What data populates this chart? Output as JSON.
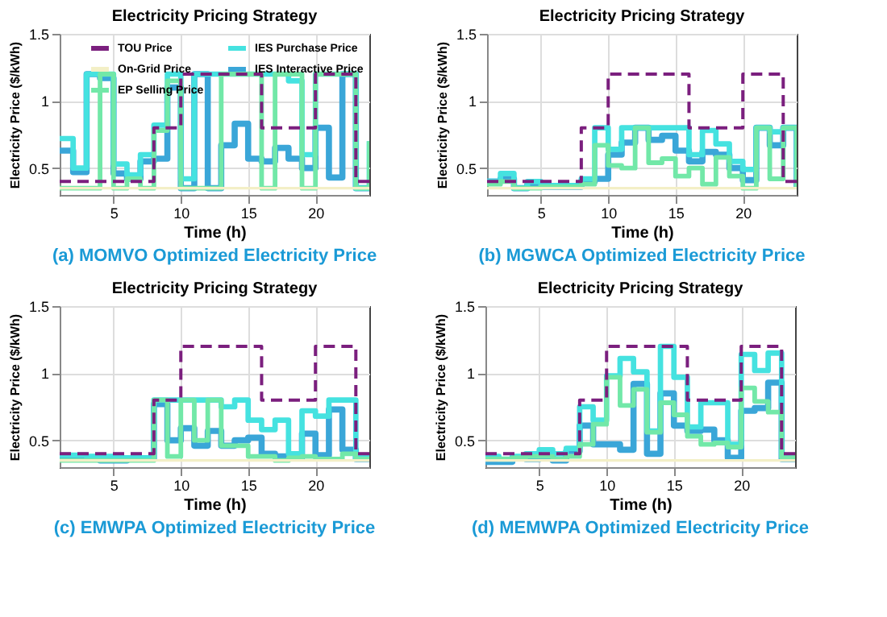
{
  "chart_data": [
    {
      "type": "step",
      "title": "Electricity Pricing Strategy",
      "xlabel": "Time (h)",
      "ylabel": "Electricity Price ($/kWh)",
      "annotations": [
        "(a) MOMVO Optimized Electricity Price"
      ],
      "x": [
        1,
        2,
        3,
        4,
        5,
        6,
        7,
        8,
        9,
        10,
        11,
        12,
        13,
        14,
        15,
        16,
        17,
        18,
        19,
        20,
        21,
        22,
        23,
        24
      ],
      "xlim": [
        1,
        24
      ],
      "xticks": [
        5,
        10,
        15,
        20
      ],
      "ylim": [
        0.3,
        1.5
      ],
      "yticks": [
        0.5,
        1,
        1.5
      ],
      "grid": true,
      "legend": "top",
      "series": [
        {
          "name": "TOU Price",
          "color": "#7b1f7e",
          "line_style": "dashed",
          "values": [
            0.4,
            0.4,
            0.4,
            0.4,
            0.4,
            0.4,
            0.4,
            0.8,
            0.8,
            1.2,
            1.2,
            1.2,
            1.2,
            1.2,
            1.2,
            0.8,
            0.8,
            0.8,
            0.8,
            1.2,
            1.2,
            1.2,
            0.4,
            0.4
          ]
        },
        {
          "name": "On-Grid Price",
          "color": "#f3efc6",
          "values": [
            0.35,
            0.35,
            0.35,
            0.35,
            0.35,
            0.35,
            0.35,
            0.35,
            0.35,
            0.35,
            0.35,
            0.35,
            0.35,
            0.35,
            0.35,
            0.35,
            0.35,
            0.35,
            0.35,
            0.35,
            0.35,
            0.35,
            0.35,
            0.35
          ]
        },
        {
          "name": "EP Selling Price",
          "color": "#72e8a8",
          "values": [
            0.35,
            0.35,
            0.35,
            1.2,
            0.35,
            0.42,
            0.35,
            0.78,
            1.15,
            0.35,
            0.35,
            0.35,
            1.2,
            1.2,
            1.2,
            0.35,
            1.2,
            1.2,
            0.35,
            1.2,
            1.2,
            1.2,
            0.35,
            0.7
          ]
        },
        {
          "name": "IES Purchase Price",
          "color": "#45e2e0",
          "values": [
            0.72,
            0.5,
            1.2,
            1.2,
            0.53,
            0.45,
            0.6,
            0.82,
            1.2,
            0.42,
            1.2,
            1.2,
            1.2,
            1.2,
            1.2,
            1.2,
            1.2,
            1.15,
            0.6,
            1.2,
            1.2,
            1.2,
            0.35,
            0.7
          ]
        },
        {
          "name": "IES Interactive Price",
          "color": "#3aa6d8",
          "values": [
            0.63,
            0.47,
            1.2,
            1.17,
            0.46,
            0.42,
            0.55,
            0.57,
            1.1,
            0.35,
            1.2,
            0.35,
            0.67,
            0.83,
            0.57,
            0.55,
            0.65,
            0.57,
            0.5,
            0.8,
            0.43,
            1.2,
            0.35,
            0.35
          ]
        }
      ]
    },
    {
      "type": "step",
      "title": "Electricity Pricing Strategy",
      "xlabel": "Time (h)",
      "ylabel": "Electricity Price ($/kWh)",
      "annotations": [
        "(b) MGWCA Optimized Electricity Price"
      ],
      "x": [
        1,
        2,
        3,
        4,
        5,
        6,
        7,
        8,
        9,
        10,
        11,
        12,
        13,
        14,
        15,
        16,
        17,
        18,
        19,
        20,
        21,
        22,
        23,
        24
      ],
      "xlim": [
        1,
        24
      ],
      "xticks": [
        5,
        10,
        15,
        20
      ],
      "ylim": [
        0.3,
        1.5
      ],
      "yticks": [
        0.5,
        1,
        1.5
      ],
      "grid": true,
      "legend": "top",
      "series": [
        {
          "name": "TOU Price",
          "color": "#7b1f7e",
          "line_style": "dashed",
          "values": [
            0.4,
            0.4,
            0.4,
            0.4,
            0.4,
            0.4,
            0.4,
            0.8,
            0.8,
            1.2,
            1.2,
            1.2,
            1.2,
            1.2,
            1.2,
            0.8,
            0.8,
            0.8,
            0.8,
            1.2,
            1.2,
            1.2,
            0.4,
            0.4
          ]
        },
        {
          "name": "On-Grid Price",
          "color": "#f3efc6",
          "values": [
            0.35,
            0.35,
            0.35,
            0.35,
            0.35,
            0.35,
            0.35,
            0.35,
            0.35,
            0.35,
            0.35,
            0.35,
            0.35,
            0.35,
            0.35,
            0.35,
            0.35,
            0.35,
            0.35,
            0.35,
            0.35,
            0.35,
            0.35,
            0.35
          ]
        },
        {
          "name": "EP Selling Price",
          "color": "#72e8a8",
          "values": [
            0.38,
            0.4,
            0.35,
            0.35,
            0.36,
            0.36,
            0.36,
            0.38,
            0.67,
            0.52,
            0.5,
            0.8,
            0.54,
            0.57,
            0.44,
            0.5,
            0.38,
            0.58,
            0.44,
            0.35,
            0.8,
            0.42,
            0.8,
            0.35
          ]
        },
        {
          "name": "IES Purchase Price",
          "color": "#45e2e0",
          "values": [
            0.4,
            0.46,
            0.35,
            0.4,
            0.37,
            0.37,
            0.37,
            0.42,
            0.8,
            0.64,
            0.8,
            0.8,
            0.8,
            0.8,
            0.8,
            0.6,
            0.78,
            0.68,
            0.55,
            0.49,
            0.8,
            0.77,
            0.8,
            0.36
          ]
        },
        {
          "name": "IES Interactive Price",
          "color": "#3aa6d8",
          "values": [
            0.4,
            0.42,
            0.35,
            0.38,
            0.36,
            0.36,
            0.36,
            0.4,
            0.42,
            0.6,
            0.69,
            0.8,
            0.71,
            0.74,
            0.63,
            0.55,
            0.62,
            0.6,
            0.5,
            0.41,
            0.8,
            0.67,
            0.8,
            0.36
          ]
        }
      ]
    },
    {
      "type": "step",
      "title": "Electricity Pricing Strategy",
      "xlabel": "Time (h)",
      "ylabel": "Electricity Price ($/kWh)",
      "annotations": [
        "(c) EMWPA Optimized Electricity Price"
      ],
      "x": [
        1,
        2,
        3,
        4,
        5,
        6,
        7,
        8,
        9,
        10,
        11,
        12,
        13,
        14,
        15,
        16,
        17,
        18,
        19,
        20,
        21,
        22,
        23,
        24
      ],
      "xlim": [
        1,
        24
      ],
      "xticks": [
        5,
        10,
        15,
        20
      ],
      "ylim": [
        0.3,
        1.5
      ],
      "yticks": [
        0.5,
        1,
        1.5
      ],
      "grid": true,
      "legend": "top",
      "series": [
        {
          "name": "TOU Price",
          "color": "#7b1f7e",
          "line_style": "dashed",
          "values": [
            0.4,
            0.4,
            0.4,
            0.4,
            0.4,
            0.4,
            0.4,
            0.8,
            0.8,
            1.2,
            1.2,
            1.2,
            1.2,
            1.2,
            1.2,
            0.8,
            0.8,
            0.8,
            0.8,
            1.2,
            1.2,
            1.2,
            0.4,
            0.4
          ]
        },
        {
          "name": "On-Grid Price",
          "color": "#f3efc6",
          "values": [
            0.35,
            0.35,
            0.35,
            0.35,
            0.35,
            0.35,
            0.35,
            0.35,
            0.35,
            0.35,
            0.35,
            0.35,
            0.35,
            0.35,
            0.35,
            0.35,
            0.35,
            0.35,
            0.35,
            0.35,
            0.35,
            0.35,
            0.35,
            0.35
          ]
        },
        {
          "name": "EP Selling Price",
          "color": "#72e8a8",
          "values": [
            0.35,
            0.35,
            0.35,
            0.35,
            0.35,
            0.35,
            0.35,
            0.8,
            0.38,
            0.8,
            0.5,
            0.8,
            0.46,
            0.46,
            0.38,
            0.38,
            0.35,
            0.37,
            0.38,
            0.36,
            0.36,
            0.4,
            0.36,
            0.36
          ]
        },
        {
          "name": "IES Purchase Price",
          "color": "#45e2e0",
          "values": [
            0.39,
            0.39,
            0.38,
            0.38,
            0.37,
            0.37,
            0.37,
            0.8,
            0.8,
            0.8,
            0.8,
            0.8,
            0.75,
            0.8,
            0.65,
            0.58,
            0.65,
            0.4,
            0.72,
            0.68,
            0.8,
            0.8,
            0.37,
            0.38
          ]
        },
        {
          "name": "IES Interactive Price",
          "color": "#3aa6d8",
          "values": [
            0.37,
            0.37,
            0.37,
            0.35,
            0.35,
            0.36,
            0.36,
            0.77,
            0.5,
            0.59,
            0.46,
            0.57,
            0.46,
            0.5,
            0.52,
            0.4,
            0.38,
            0.37,
            0.55,
            0.39,
            0.73,
            0.43,
            0.36,
            0.37
          ]
        }
      ]
    },
    {
      "type": "step",
      "title": "Electricity Pricing Strategy",
      "xlabel": "Time (h)",
      "ylabel": "Electricity Price ($/kWh)",
      "annotations": [
        "(d) MEMWPA Optimized Electricity Price"
      ],
      "x": [
        1,
        2,
        3,
        4,
        5,
        6,
        7,
        8,
        9,
        10,
        11,
        12,
        13,
        14,
        15,
        16,
        17,
        18,
        19,
        20,
        21,
        22,
        23,
        24
      ],
      "xlim": [
        1,
        24
      ],
      "xticks": [
        5,
        10,
        15,
        20
      ],
      "ylim": [
        0.3,
        1.5
      ],
      "yticks": [
        0.5,
        1,
        1.5
      ],
      "grid": true,
      "legend": "top",
      "series": [
        {
          "name": "TOU Price",
          "color": "#7b1f7e",
          "line_style": "dashed",
          "values": [
            0.4,
            0.4,
            0.4,
            0.4,
            0.4,
            0.4,
            0.4,
            0.8,
            0.8,
            1.2,
            1.2,
            1.2,
            1.2,
            1.2,
            1.2,
            0.8,
            0.8,
            0.8,
            0.8,
            1.2,
            1.2,
            1.2,
            0.4,
            0.4
          ]
        },
        {
          "name": "On-Grid Price",
          "color": "#f3efc6",
          "values": [
            0.35,
            0.35,
            0.35,
            0.35,
            0.35,
            0.35,
            0.35,
            0.35,
            0.35,
            0.35,
            0.35,
            0.35,
            0.35,
            0.35,
            0.35,
            0.35,
            0.35,
            0.35,
            0.35,
            0.35,
            0.35,
            0.35,
            0.35,
            0.35
          ]
        },
        {
          "name": "EP Selling Price",
          "color": "#72e8a8",
          "values": [
            0.36,
            0.36,
            0.37,
            0.38,
            0.38,
            0.36,
            0.38,
            0.47,
            0.62,
            0.97,
            0.76,
            0.88,
            0.56,
            0.78,
            0.69,
            0.53,
            0.47,
            0.48,
            0.45,
            0.89,
            0.79,
            0.71,
            0.37,
            0.4
          ]
        },
        {
          "name": "IES Purchase Price",
          "color": "#45e2e0",
          "values": [
            0.38,
            0.36,
            0.38,
            0.4,
            0.43,
            0.4,
            0.44,
            0.75,
            0.65,
            0.98,
            1.11,
            1.01,
            0.57,
            1.2,
            0.97,
            0.6,
            0.78,
            0.78,
            0.47,
            1.14,
            1.02,
            1.15,
            0.38,
            0.4
          ]
        },
        {
          "name": "IES Interactive Price",
          "color": "#3aa6d8",
          "values": [
            0.34,
            0.34,
            0.37,
            0.36,
            0.38,
            0.35,
            0.42,
            0.61,
            0.47,
            0.47,
            0.43,
            0.92,
            0.4,
            0.85,
            0.61,
            0.57,
            0.58,
            0.5,
            0.37,
            0.72,
            0.74,
            0.93,
            0.36,
            0.37
          ]
        }
      ]
    }
  ]
}
